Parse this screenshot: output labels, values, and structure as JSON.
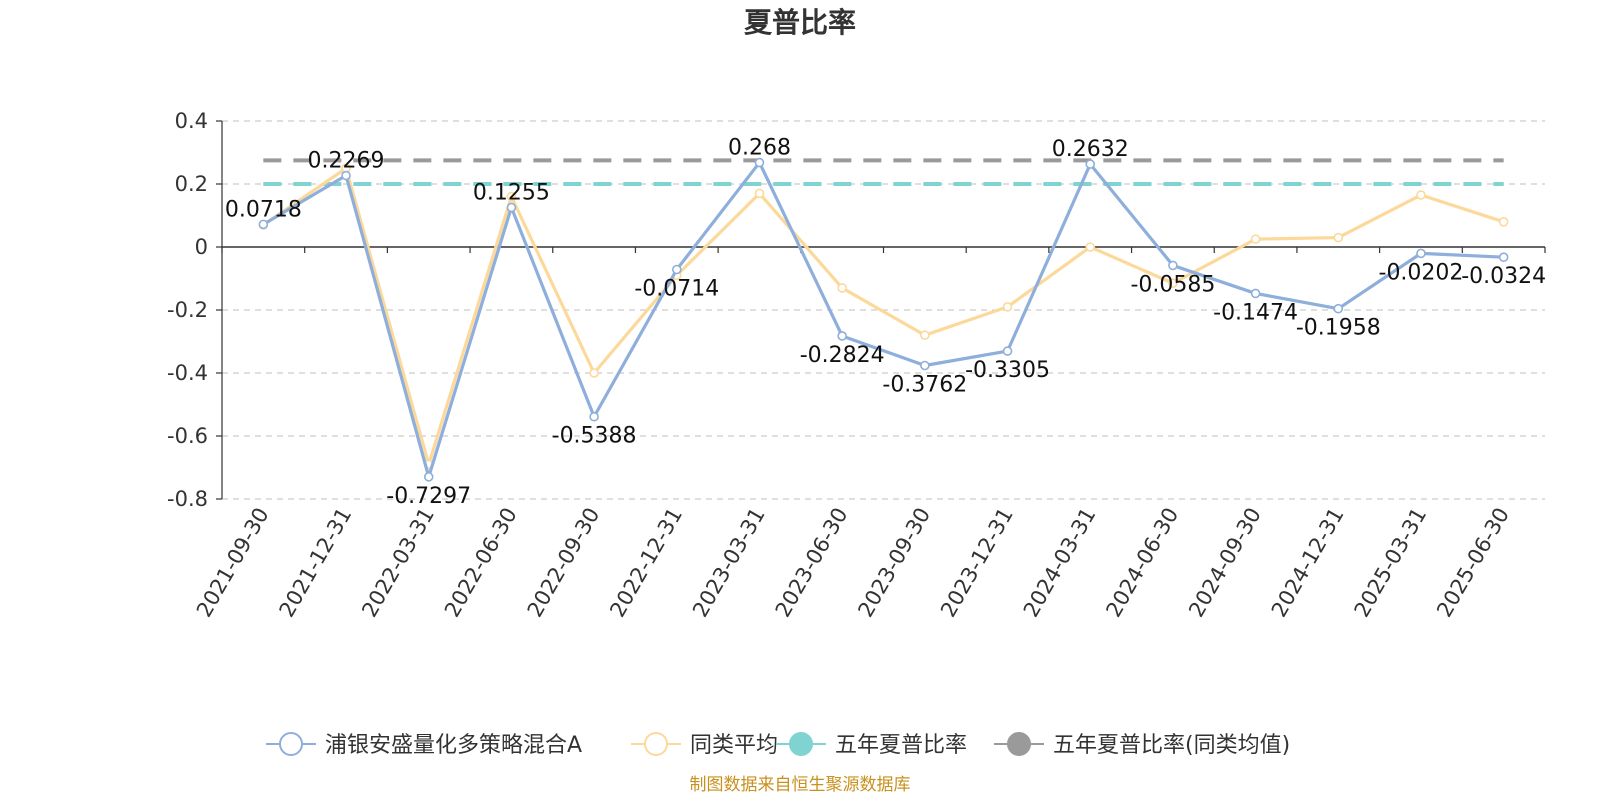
{
  "chart_data": {
    "type": "line",
    "title": "夏普比率",
    "categories": [
      "2021-09-30",
      "2021-12-31",
      "2022-03-31",
      "2022-06-30",
      "2022-09-30",
      "2022-12-31",
      "2023-03-31",
      "2023-06-30",
      "2023-09-30",
      "2023-12-31",
      "2024-03-31",
      "2024-06-30",
      "2024-09-30",
      "2024-12-31",
      "2025-03-31",
      "2025-06-30"
    ],
    "series": [
      {
        "name": "浦银安盛量化多策略混合A",
        "color": "#8eaedb",
        "values": [
          0.0718,
          0.2269,
          -0.7297,
          0.1255,
          -0.5388,
          -0.0714,
          0.268,
          -0.2824,
          -0.3762,
          -0.3305,
          0.2632,
          -0.0585,
          -0.1474,
          -0.1958,
          -0.0202,
          -0.0324
        ],
        "labels": [
          "0.0718",
          "0.2269",
          "-0.7297",
          "0.1255",
          "-0.5388",
          "-0.0714",
          "0.268",
          "-0.2824",
          "-0.3762",
          "-0.3305",
          "0.2632",
          "-0.0585",
          "-0.1474",
          "-0.1958",
          "-0.0202",
          "-0.0324"
        ]
      },
      {
        "name": "同类平均",
        "color": "#fcd99a",
        "values": [
          0.07,
          0.25,
          -0.69,
          0.16,
          -0.4,
          -0.09,
          0.17,
          -0.13,
          -0.28,
          -0.19,
          0.0,
          -0.115,
          0.025,
          0.03,
          0.165,
          0.08
        ]
      },
      {
        "name": "五年夏普比率",
        "color": "#7fd3d0",
        "constant": 0.2
      },
      {
        "name": "五年夏普比率(同类均值)",
        "color": "#9a9a9a",
        "constant": 0.275
      }
    ],
    "ylim": [
      -0.8,
      0.4
    ],
    "yticks": [
      0.4,
      0.2,
      0,
      -0.2,
      -0.4,
      -0.6,
      -0.8
    ],
    "ytick_labels": [
      "0.4",
      "0.2",
      "0",
      "-0.2",
      "-0.4",
      "-0.6",
      "-0.8"
    ],
    "grid": true,
    "legend_position": "bottom",
    "source": "制图数据来自恒生聚源数据库"
  }
}
